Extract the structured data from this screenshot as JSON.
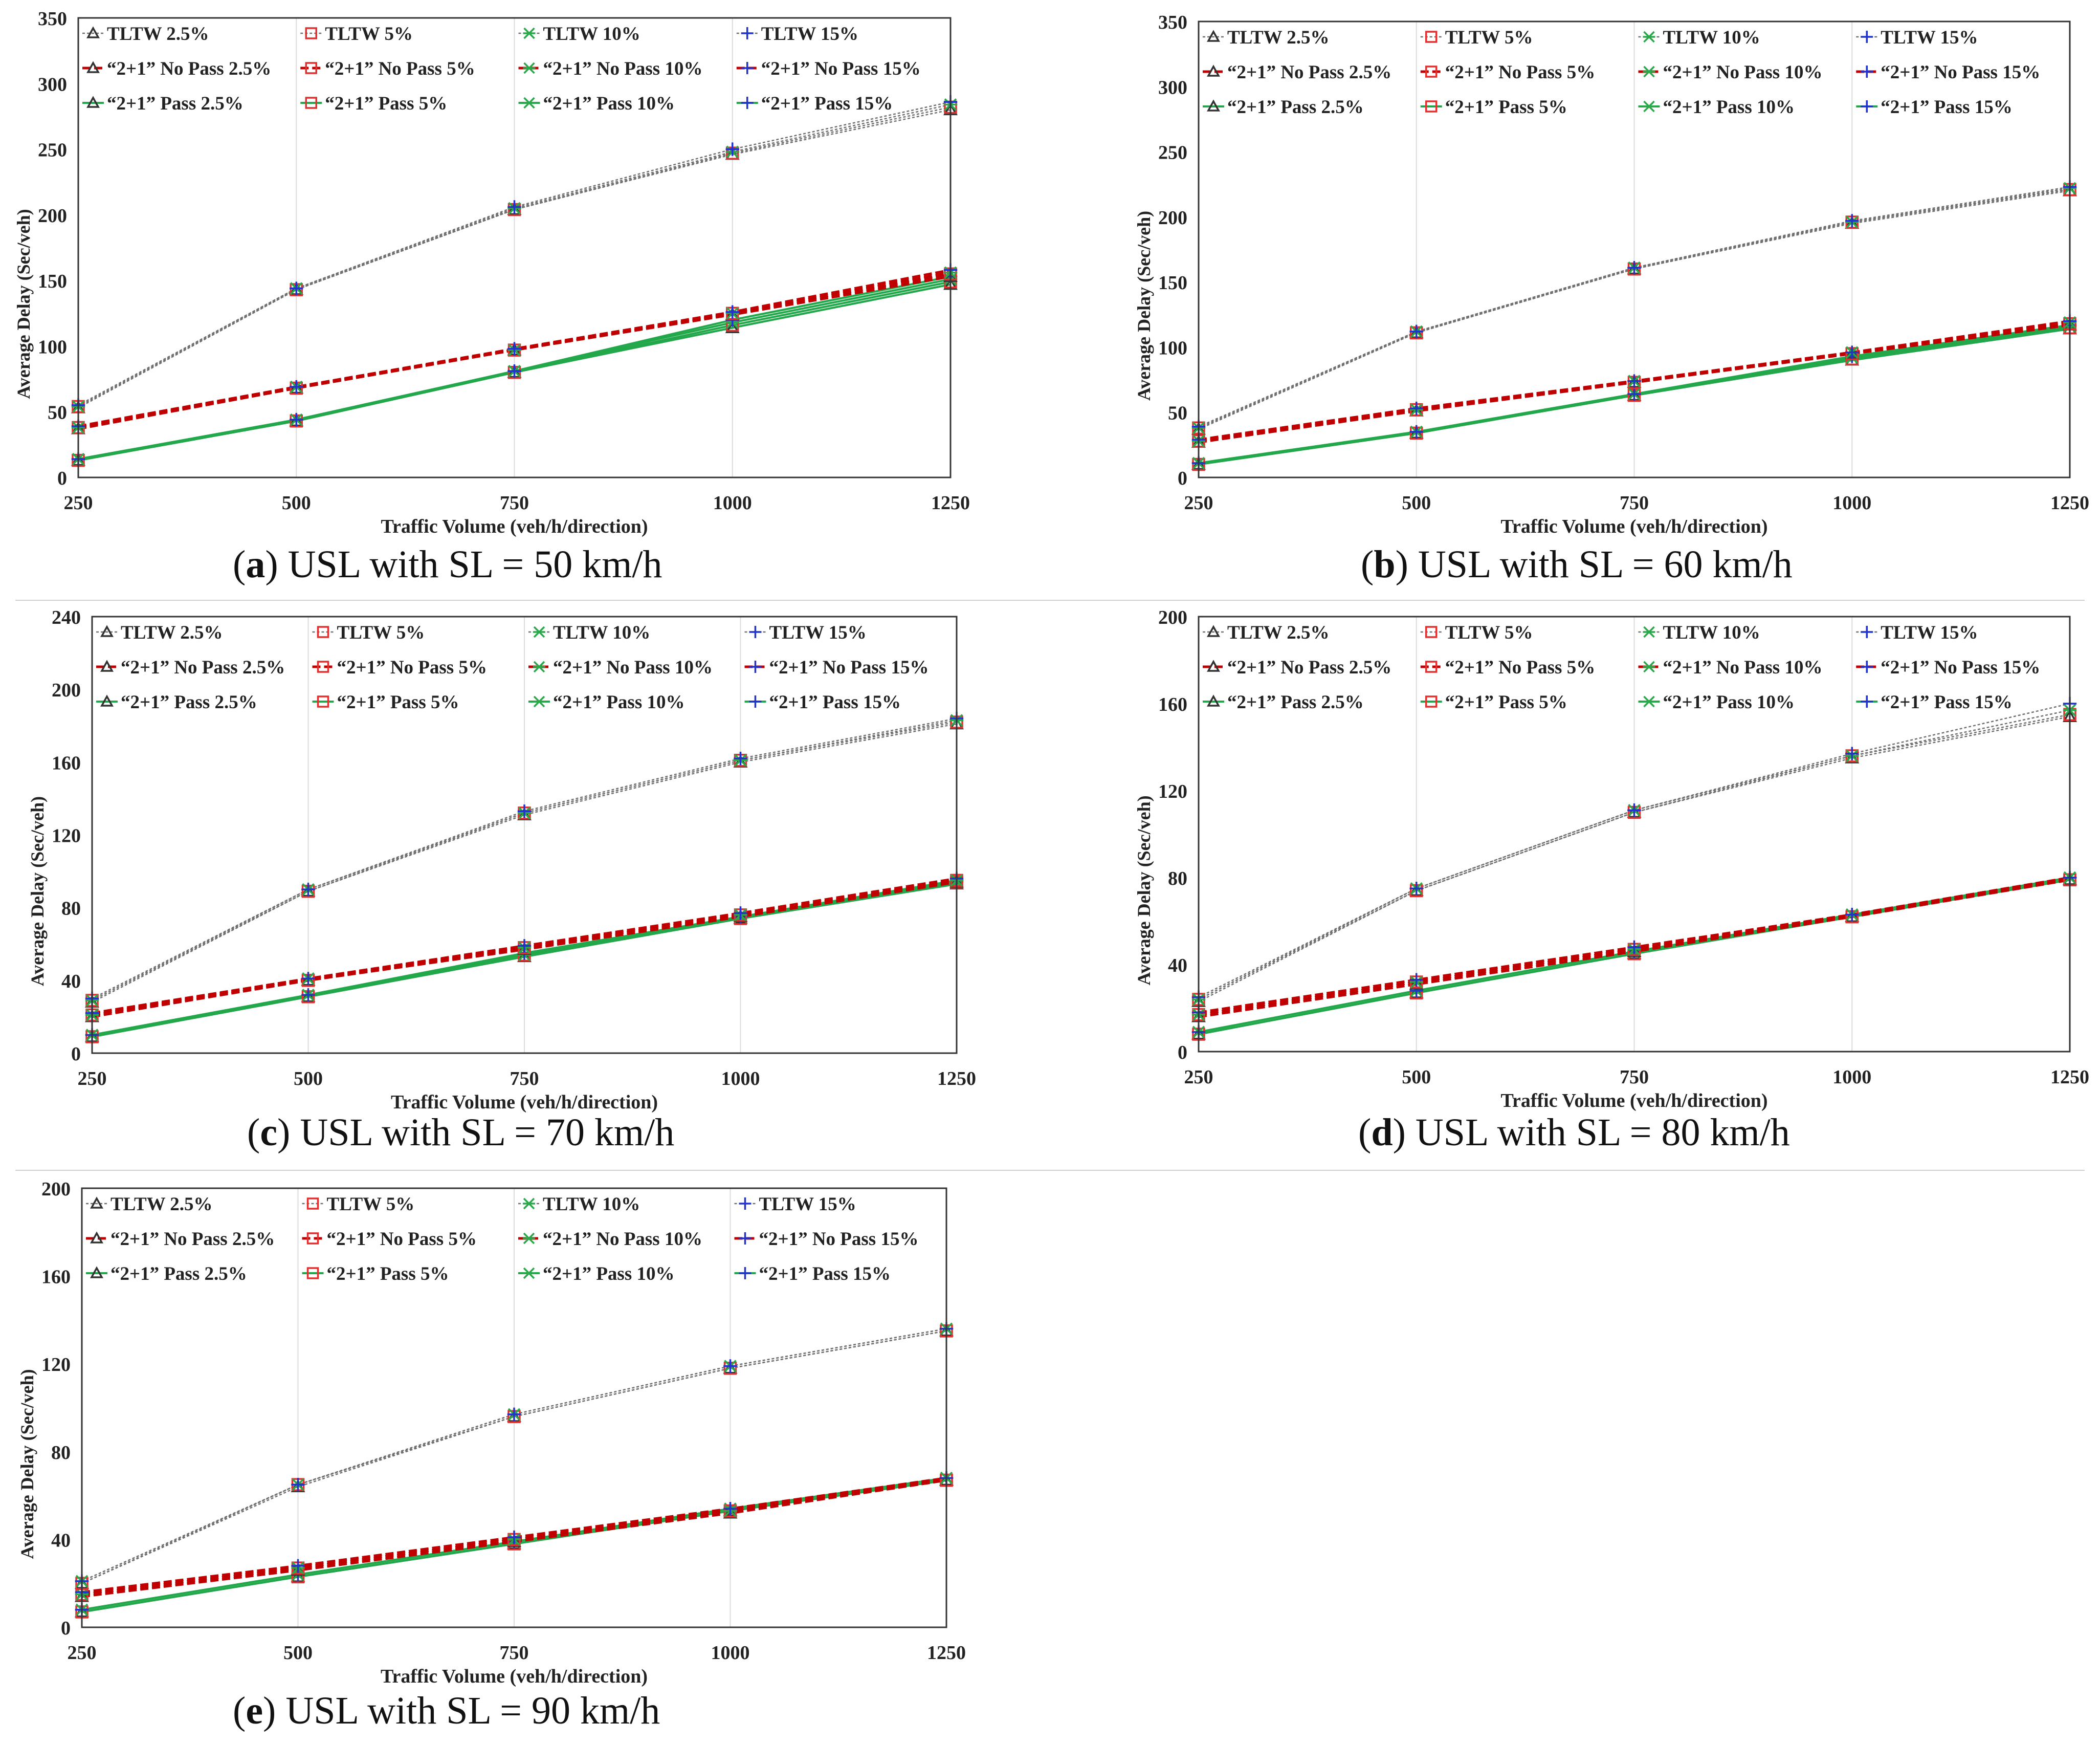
{
  "x_axis_ticks": [
    250,
    500,
    750,
    1000,
    1250
  ],
  "legend_labels": [
    "TLTW 2.5%",
    "TLTW 5%",
    "TLTW 10%",
    "TLTW 15%",
    "“2+1” No Pass 2.5%",
    "“2+1” No Pass 5%",
    "“2+1” No Pass 10%",
    "“2+1” No Pass 15%",
    "“2+1” Pass 2.5%",
    "“2+1” Pass 5%",
    "“2+1” Pass 10%",
    "“2+1” Pass 15%"
  ],
  "colors": {
    "tltw": "#707070",
    "nopass": "#c00000",
    "pass": "#22a84a",
    "marker_2_5": "#333333",
    "marker_5": "#e03030",
    "marker_10": "#2aa84a",
    "marker_15": "#2233cc"
  },
  "chart_data": [
    {
      "id": "a",
      "type": "line",
      "caption": {
        "letter": "a",
        "text": ") USL with SL = 50 km/h"
      },
      "xlabel": "Traffic Volume (veh/h/direction)",
      "ylabel": "Average Delay (Sec/veh)",
      "x": [
        250,
        500,
        750,
        1000,
        1250
      ],
      "ylim": [
        0,
        350
      ],
      "yticks": [
        0,
        50,
        100,
        150,
        200,
        250,
        300,
        350
      ],
      "series": [
        {
          "name": "TLTW 2.5%",
          "values": [
            53,
            143,
            204,
            246,
            280
          ]
        },
        {
          "name": "TLTW 5%",
          "values": [
            54,
            143,
            204,
            247,
            282
          ]
        },
        {
          "name": "TLTW 10%",
          "values": [
            54,
            144,
            205,
            248,
            284
          ]
        },
        {
          "name": "TLTW 15%",
          "values": [
            55,
            144,
            206,
            250,
            286
          ]
        },
        {
          "name": "“2+1” No Pass 2.5%",
          "values": [
            37,
            68,
            97,
            124,
            153
          ]
        },
        {
          "name": "“2+1” No Pass 5%",
          "values": [
            38,
            68,
            97,
            125,
            155
          ]
        },
        {
          "name": "“2+1” No Pass 10%",
          "values": [
            38,
            69,
            97,
            125,
            156
          ]
        },
        {
          "name": "“2+1” No Pass 15%",
          "values": [
            39,
            69,
            98,
            126,
            158
          ]
        },
        {
          "name": "“2+1” Pass 2.5%",
          "values": [
            13,
            43,
            80,
            114,
            147
          ]
        },
        {
          "name": "“2+1” Pass 5%",
          "values": [
            13,
            43,
            80,
            116,
            149
          ]
        },
        {
          "name": "“2+1” Pass 10%",
          "values": [
            14,
            44,
            81,
            118,
            151
          ]
        },
        {
          "name": "“2+1” Pass 15%",
          "values": [
            14,
            44,
            81,
            120,
            153
          ]
        }
      ]
    },
    {
      "id": "b",
      "type": "line",
      "caption": {
        "letter": "b",
        "text": ") USL with SL = 60 km/h"
      },
      "xlabel": "Traffic Volume (veh/h/direction)",
      "ylabel": "Average Delay (Sec/veh)",
      "x": [
        250,
        500,
        750,
        1000,
        1250
      ],
      "ylim": [
        0,
        350
      ],
      "yticks": [
        0,
        50,
        100,
        150,
        200,
        250,
        300,
        350
      ],
      "series": [
        {
          "name": "TLTW 2.5%",
          "values": [
            37,
            111,
            160,
            195,
            220
          ]
        },
        {
          "name": "TLTW 5%",
          "values": [
            38,
            111,
            160,
            196,
            221
          ]
        },
        {
          "name": "TLTW 10%",
          "values": [
            38,
            112,
            161,
            196,
            222
          ]
        },
        {
          "name": "TLTW 15%",
          "values": [
            39,
            112,
            161,
            197,
            223
          ]
        },
        {
          "name": "“2+1” No Pass 2.5%",
          "values": [
            27,
            51,
            73,
            95,
            117
          ]
        },
        {
          "name": "“2+1” No Pass 5%",
          "values": [
            28,
            52,
            73,
            95,
            118
          ]
        },
        {
          "name": "“2+1” No Pass 10%",
          "values": [
            28,
            52,
            74,
            96,
            119
          ]
        },
        {
          "name": "“2+1” No Pass 15%",
          "values": [
            29,
            53,
            74,
            96,
            120
          ]
        },
        {
          "name": "“2+1” Pass 2.5%",
          "values": [
            10,
            34,
            63,
            90,
            114
          ]
        },
        {
          "name": "“2+1” Pass 5%",
          "values": [
            10,
            34,
            63,
            91,
            115
          ]
        },
        {
          "name": "“2+1” Pass 10%",
          "values": [
            11,
            35,
            64,
            92,
            116
          ]
        },
        {
          "name": "“2+1” Pass 15%",
          "values": [
            11,
            35,
            64,
            93,
            117
          ]
        }
      ]
    },
    {
      "id": "c",
      "type": "line",
      "caption": {
        "letter": "c",
        "text": ") USL with SL = 70 km/h"
      },
      "xlabel": "Traffic Volume (veh/h/direction)",
      "ylabel": "Average Delay (Sec/veh)",
      "x": [
        250,
        500,
        750,
        1000,
        1250
      ],
      "ylim": [
        0,
        240
      ],
      "yticks": [
        0,
        40,
        80,
        120,
        160,
        200,
        240
      ],
      "series": [
        {
          "name": "TLTW 2.5%",
          "values": [
            28,
            89,
            131,
            160,
            181
          ]
        },
        {
          "name": "TLTW 5%",
          "values": [
            29,
            89,
            132,
            161,
            182
          ]
        },
        {
          "name": "TLTW 10%",
          "values": [
            29,
            90,
            132,
            161,
            183
          ]
        },
        {
          "name": "TLTW 15%",
          "values": [
            30,
            90,
            133,
            162,
            184
          ]
        },
        {
          "name": "“2+1” No Pass 2.5%",
          "values": [
            20,
            40,
            57,
            75,
            94
          ]
        },
        {
          "name": "“2+1” No Pass 5%",
          "values": [
            21,
            40,
            58,
            76,
            95
          ]
        },
        {
          "name": "“2+1” No Pass 10%",
          "values": [
            21,
            41,
            58,
            76,
            95
          ]
        },
        {
          "name": "“2+1” No Pass 15%",
          "values": [
            22,
            41,
            59,
            77,
            96
          ]
        },
        {
          "name": "“2+1” Pass 2.5%",
          "values": [
            9,
            31,
            53,
            74,
            93
          ]
        },
        {
          "name": "“2+1” Pass 5%",
          "values": [
            9,
            31,
            54,
            74,
            94
          ]
        },
        {
          "name": "“2+1” Pass 10%",
          "values": [
            10,
            32,
            54,
            75,
            94
          ]
        },
        {
          "name": "“2+1” Pass 15%",
          "values": [
            10,
            32,
            55,
            75,
            95
          ]
        }
      ]
    },
    {
      "id": "d",
      "type": "line",
      "caption": {
        "letter": "d",
        "text": ") USL with SL = 80 km/h"
      },
      "xlabel": "Traffic Volume (veh/h/direction)",
      "ylabel": "Average Delay (Sec/veh)",
      "x": [
        250,
        500,
        750,
        1000,
        1250
      ],
      "ylim": [
        0,
        200
      ],
      "yticks": [
        0,
        40,
        80,
        120,
        160,
        200
      ],
      "series": [
        {
          "name": "TLTW 2.5%",
          "values": [
            23,
            74,
            110,
            135,
            154
          ]
        },
        {
          "name": "TLTW 5%",
          "values": [
            24,
            74,
            110,
            136,
            155
          ]
        },
        {
          "name": "TLTW 10%",
          "values": [
            24,
            75,
            111,
            136,
            157
          ]
        },
        {
          "name": "TLTW 15%",
          "values": [
            25,
            75,
            111,
            137,
            160
          ]
        },
        {
          "name": "“2+1” No Pass 2.5%",
          "values": [
            16,
            31,
            46,
            62,
            79
          ]
        },
        {
          "name": "“2+1” No Pass 5%",
          "values": [
            17,
            32,
            47,
            62,
            79
          ]
        },
        {
          "name": "“2+1” No Pass 10%",
          "values": [
            17,
            32,
            47,
            63,
            80
          ]
        },
        {
          "name": "“2+1” No Pass 15%",
          "values": [
            18,
            33,
            48,
            63,
            80
          ]
        },
        {
          "name": "“2+1” Pass 2.5%",
          "values": [
            8,
            27,
            45,
            62,
            79
          ]
        },
        {
          "name": "“2+1” Pass 5%",
          "values": [
            8,
            27,
            45,
            62,
            79
          ]
        },
        {
          "name": "“2+1” Pass 10%",
          "values": [
            9,
            28,
            46,
            63,
            80
          ]
        },
        {
          "name": "“2+1” Pass 15%",
          "values": [
            9,
            28,
            46,
            63,
            80
          ]
        }
      ]
    },
    {
      "id": "e",
      "type": "line",
      "caption": {
        "letter": "e",
        "text": ") USL with SL = 90 km/h"
      },
      "xlabel": "Traffic Volume (veh/h/direction)",
      "ylabel": "Average Delay (Sec/veh)",
      "x": [
        250,
        500,
        750,
        1000,
        1250
      ],
      "ylim": [
        0,
        200
      ],
      "yticks": [
        0,
        40,
        80,
        120,
        160,
        200
      ],
      "series": [
        {
          "name": "TLTW 2.5%",
          "values": [
            20,
            64,
            96,
            118,
            135
          ]
        },
        {
          "name": "TLTW 5%",
          "values": [
            20,
            65,
            96,
            118,
            135
          ]
        },
        {
          "name": "TLTW 10%",
          "values": [
            21,
            65,
            97,
            119,
            136
          ]
        },
        {
          "name": "TLTW 15%",
          "values": [
            21,
            65,
            97,
            119,
            136
          ]
        },
        {
          "name": "“2+1” No Pass 2.5%",
          "values": [
            14,
            26,
            39,
            52,
            67
          ]
        },
        {
          "name": "“2+1” No Pass 5%",
          "values": [
            15,
            27,
            40,
            53,
            67
          ]
        },
        {
          "name": "“2+1” No Pass 10%",
          "values": [
            15,
            27,
            40,
            53,
            68
          ]
        },
        {
          "name": "“2+1” No Pass 15%",
          "values": [
            16,
            28,
            41,
            54,
            68
          ]
        },
        {
          "name": "“2+1” Pass 2.5%",
          "values": [
            7,
            23,
            38,
            53,
            67
          ]
        },
        {
          "name": "“2+1” Pass 5%",
          "values": [
            7,
            23,
            38,
            53,
            67
          ]
        },
        {
          "name": "“2+1” Pass 10%",
          "values": [
            8,
            24,
            39,
            54,
            68
          ]
        },
        {
          "name": "“2+1” Pass 15%",
          "values": [
            8,
            24,
            39,
            54,
            68
          ]
        }
      ]
    }
  ]
}
